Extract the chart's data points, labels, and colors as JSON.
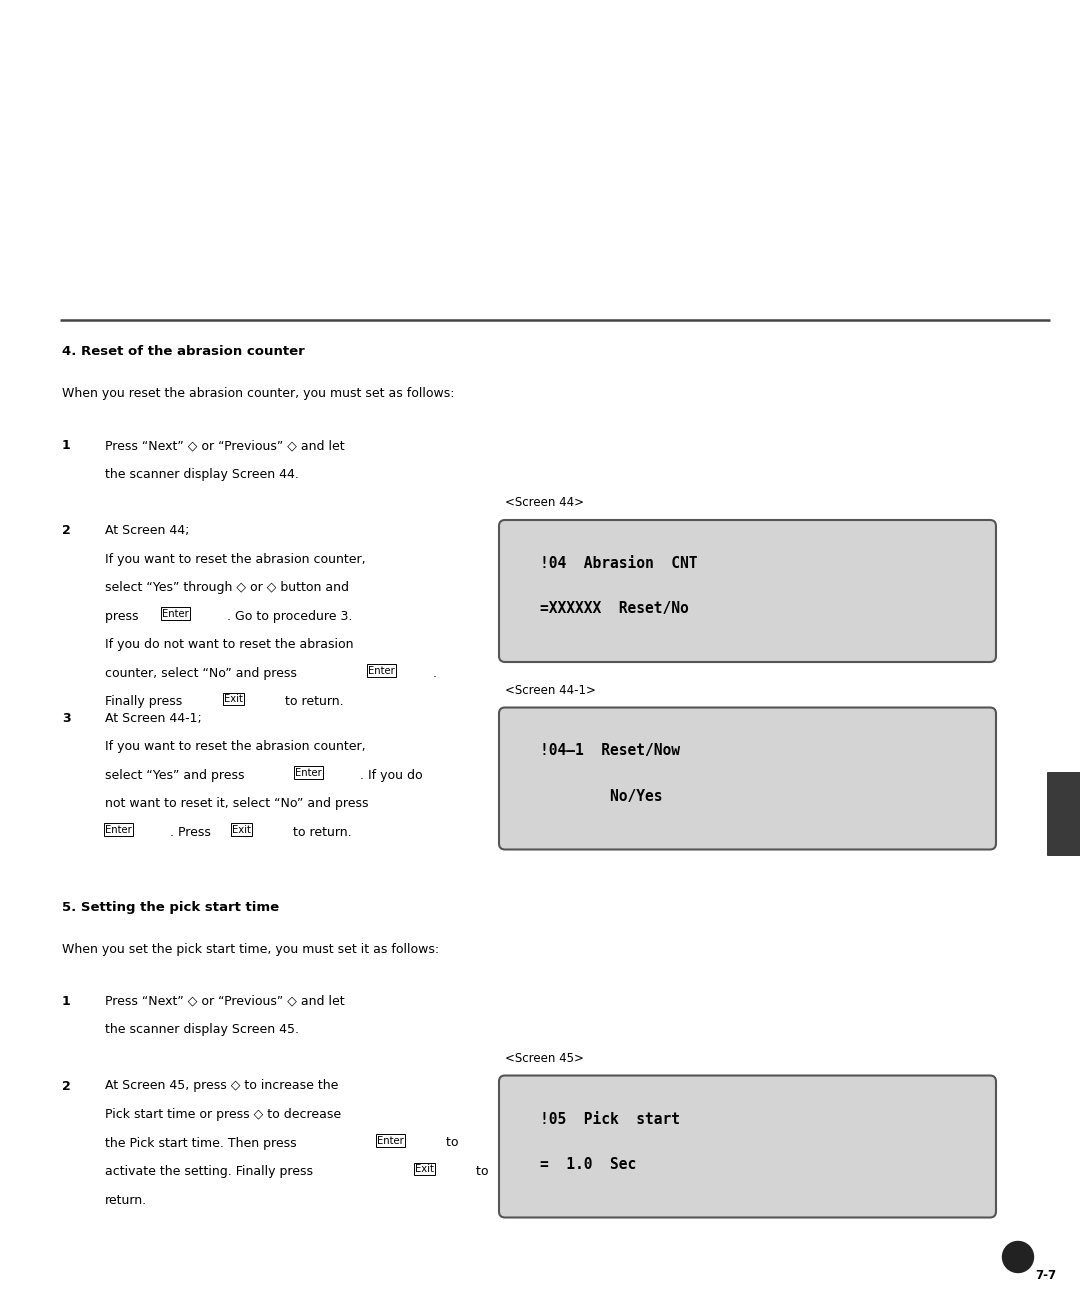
{
  "bg_color": "#ffffff",
  "page_width": 10.8,
  "page_height": 12.95,
  "text_color": "#000000",
  "screen_bg": "#d4d4d4",
  "screen_border": "#555555",
  "section4_title": "4. Reset of the abrasion counter",
  "section4_intro": "When you reset the abrasion counter, you must set as follows:",
  "screen44_label": "<Screen 44>",
  "screen44_line1": "!04  Abrasion  CNT",
  "screen44_line2": "=XXXXXX  Reset/No",
  "screen441_label": "<Screen 44-1>",
  "screen441_line1": "!04–1  Reset/Now",
  "screen441_line2": "        No/Yes",
  "section5_title": "5. Setting the pick start time",
  "section5_intro": "When you set the pick start time, you must set it as follows:",
  "screen45_label": "<Screen 45>",
  "screen45_line1": "!05  Pick  start",
  "screen45_line2": "=  1.0  Sec",
  "page_num": "7-7"
}
